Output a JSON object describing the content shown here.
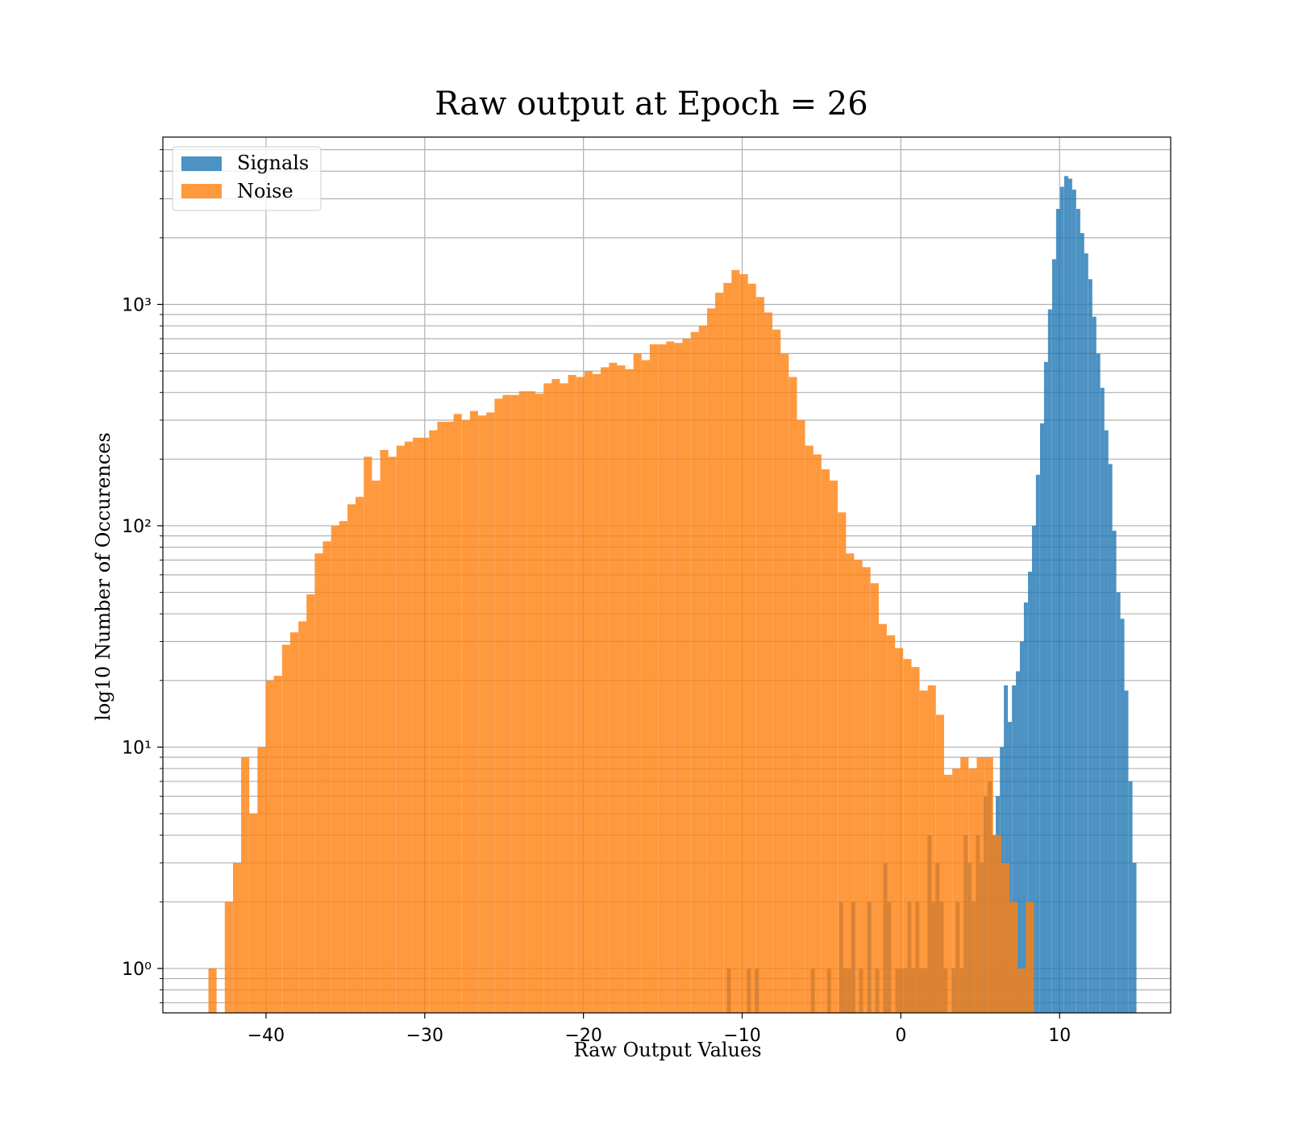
{
  "chart_data": {
    "type": "bar",
    "title": "Raw output at Epoch = 26",
    "xlabel": "Raw Output Values",
    "ylabel": "log10 Number of Occurences",
    "xlim": [
      -46.5,
      17
    ],
    "ylim": [
      0.63,
      5700
    ],
    "y_scale": "log",
    "grid": true,
    "legend_position": "top-left",
    "x_ticks": [
      -40,
      -30,
      -20,
      -10,
      0,
      10
    ],
    "x_tick_labels": [
      "−40",
      "−30",
      "−20",
      "−10",
      "0",
      "10"
    ],
    "y_ticks": [
      1,
      10,
      100,
      1000
    ],
    "y_tick_labels": [
      "10⁰",
      "10¹",
      "10²",
      "10³"
    ],
    "series": [
      {
        "name": "Signals",
        "color": "#1f77b4",
        "opacity": 0.8,
        "bin_width": 0.253,
        "bins": [
          [
            -10.96,
            1
          ],
          [
            -9.7,
            1
          ],
          [
            -9.2,
            1
          ],
          [
            -5.67,
            1
          ],
          [
            -4.65,
            1
          ],
          [
            -3.89,
            2
          ],
          [
            -3.64,
            1
          ],
          [
            -3.38,
            1
          ],
          [
            -3.13,
            2
          ],
          [
            -2.63,
            1
          ],
          [
            -2.12,
            2
          ],
          [
            -1.62,
            1
          ],
          [
            -1.11,
            3
          ],
          [
            -0.86,
            2
          ],
          [
            -0.35,
            1
          ],
          [
            -0.1,
            1
          ],
          [
            0.16,
            1
          ],
          [
            0.41,
            2
          ],
          [
            0.66,
            1
          ],
          [
            0.92,
            2
          ],
          [
            1.17,
            1
          ],
          [
            1.42,
            1
          ],
          [
            1.68,
            4
          ],
          [
            1.93,
            2
          ],
          [
            2.18,
            3
          ],
          [
            2.44,
            2
          ],
          [
            2.69,
            1
          ],
          [
            3.2,
            1
          ],
          [
            3.45,
            2
          ],
          [
            3.71,
            1
          ],
          [
            3.96,
            4
          ],
          [
            4.21,
            3
          ],
          [
            4.46,
            2
          ],
          [
            4.72,
            4
          ],
          [
            4.97,
            3
          ],
          [
            5.22,
            6
          ],
          [
            5.48,
            7
          ],
          [
            5.73,
            4
          ],
          [
            5.98,
            6
          ],
          [
            6.24,
            10
          ],
          [
            6.49,
            19
          ],
          [
            6.74,
            13
          ],
          [
            7.0,
            19
          ],
          [
            7.25,
            22
          ],
          [
            7.5,
            30
          ],
          [
            7.75,
            45
          ],
          [
            8.01,
            62
          ],
          [
            8.26,
            100
          ],
          [
            8.51,
            170
          ],
          [
            8.77,
            290
          ],
          [
            9.02,
            550
          ],
          [
            9.27,
            950
          ],
          [
            9.53,
            1600
          ],
          [
            9.78,
            2700
          ],
          [
            10.03,
            3400
          ],
          [
            10.29,
            3800
          ],
          [
            10.54,
            3700
          ],
          [
            10.79,
            3300
          ],
          [
            11.05,
            2700
          ],
          [
            11.3,
            2100
          ],
          [
            11.55,
            1700
          ],
          [
            11.81,
            1300
          ],
          [
            12.06,
            880
          ],
          [
            12.31,
            600
          ],
          [
            12.57,
            420
          ],
          [
            12.82,
            270
          ],
          [
            13.07,
            190
          ],
          [
            13.32,
            95
          ],
          [
            13.58,
            50
          ],
          [
            13.83,
            38
          ],
          [
            14.08,
            18
          ],
          [
            14.34,
            7
          ],
          [
            14.59,
            3
          ]
        ]
      },
      {
        "name": "Noise",
        "color": "#ff7f0e",
        "opacity": 0.8,
        "bin_width": 0.515,
        "bins": [
          [
            -43.63,
            1
          ],
          [
            -42.6,
            2
          ],
          [
            -42.08,
            3
          ],
          [
            -41.57,
            9
          ],
          [
            -41.05,
            5
          ],
          [
            -40.54,
            10
          ],
          [
            -40.02,
            20
          ],
          [
            -39.51,
            21
          ],
          [
            -38.99,
            29
          ],
          [
            -38.48,
            33
          ],
          [
            -37.96,
            37
          ],
          [
            -37.45,
            49
          ],
          [
            -36.93,
            75
          ],
          [
            -36.42,
            85
          ],
          [
            -35.9,
            100
          ],
          [
            -35.39,
            105
          ],
          [
            -34.87,
            125
          ],
          [
            -34.36,
            135
          ],
          [
            -33.84,
            205
          ],
          [
            -33.33,
            160
          ],
          [
            -32.81,
            220
          ],
          [
            -32.3,
            205
          ],
          [
            -31.78,
            230
          ],
          [
            -31.27,
            240
          ],
          [
            -30.75,
            250
          ],
          [
            -30.24,
            250
          ],
          [
            -29.72,
            270
          ],
          [
            -29.21,
            295
          ],
          [
            -28.69,
            295
          ],
          [
            -28.18,
            320
          ],
          [
            -27.66,
            300
          ],
          [
            -27.15,
            330
          ],
          [
            -26.63,
            315
          ],
          [
            -26.12,
            325
          ],
          [
            -25.6,
            375
          ],
          [
            -25.09,
            390
          ],
          [
            -24.57,
            390
          ],
          [
            -24.06,
            405
          ],
          [
            -23.54,
            405
          ],
          [
            -23.03,
            395
          ],
          [
            -22.51,
            440
          ],
          [
            -22.0,
            460
          ],
          [
            -21.48,
            440
          ],
          [
            -20.97,
            480
          ],
          [
            -20.45,
            470
          ],
          [
            -19.94,
            500
          ],
          [
            -19.42,
            485
          ],
          [
            -18.91,
            520
          ],
          [
            -18.39,
            545
          ],
          [
            -17.88,
            530
          ],
          [
            -17.36,
            510
          ],
          [
            -16.85,
            600
          ],
          [
            -16.33,
            560
          ],
          [
            -15.82,
            660
          ],
          [
            -15.3,
            660
          ],
          [
            -14.79,
            680
          ],
          [
            -14.27,
            670
          ],
          [
            -13.76,
            700
          ],
          [
            -13.24,
            750
          ],
          [
            -12.73,
            800
          ],
          [
            -12.21,
            960
          ],
          [
            -11.7,
            1130
          ],
          [
            -11.18,
            1250
          ],
          [
            -10.67,
            1430
          ],
          [
            -10.15,
            1370
          ],
          [
            -9.64,
            1240
          ],
          [
            -9.12,
            1080
          ],
          [
            -8.61,
            920
          ],
          [
            -8.09,
            770
          ],
          [
            -7.58,
            600
          ],
          [
            -7.06,
            470
          ],
          [
            -6.55,
            300
          ],
          [
            -6.03,
            230
          ],
          [
            -5.52,
            210
          ],
          [
            -5.0,
            180
          ],
          [
            -4.49,
            160
          ],
          [
            -3.97,
            115
          ],
          [
            -3.46,
            75
          ],
          [
            -2.94,
            70
          ],
          [
            -2.43,
            65
          ],
          [
            -1.91,
            55
          ],
          [
            -1.4,
            36
          ],
          [
            -0.88,
            32
          ],
          [
            -0.37,
            28
          ],
          [
            0.15,
            25
          ],
          [
            0.66,
            23
          ],
          [
            1.18,
            18
          ],
          [
            1.69,
            19
          ],
          [
            2.21,
            14
          ],
          [
            2.72,
            7.5
          ],
          [
            3.24,
            8
          ],
          [
            3.75,
            9
          ],
          [
            4.27,
            8
          ],
          [
            4.78,
            9
          ],
          [
            5.3,
            9
          ],
          [
            5.81,
            4
          ],
          [
            6.33,
            3
          ],
          [
            6.84,
            2
          ],
          [
            7.36,
            1
          ],
          [
            7.87,
            2
          ]
        ]
      }
    ]
  }
}
